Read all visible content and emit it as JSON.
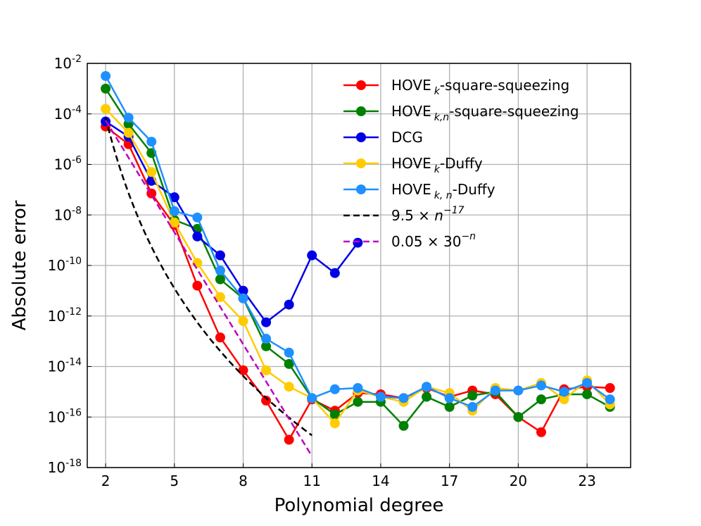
{
  "chart_data": {
    "type": "line",
    "title": "",
    "xlabel": "Polynomial degree",
    "ylabel": "Absolute error",
    "yscale": "log",
    "xlim": [
      1.2,
      24.9
    ],
    "ylim_exp": [
      -18,
      -2
    ],
    "xticks": [
      2,
      5,
      8,
      11,
      14,
      17,
      20,
      23
    ],
    "xtick_labels": [
      "2",
      "5",
      "8",
      "11",
      "14",
      "17",
      "20",
      "23"
    ],
    "yticks_exp": [
      -18,
      -16,
      -14,
      -12,
      -10,
      -8,
      -6,
      -4,
      -2
    ],
    "ytick_labels": [
      "-18",
      "-16",
      "-14",
      "-12",
      "-10",
      "-8",
      "-6",
      "-4",
      "-2"
    ],
    "ytick_base": "10",
    "grid": true,
    "legend_position": "top-right",
    "series": [
      {
        "name": "HOVE k -square-squeezing",
        "legend_main": "HOVE",
        "legend_sub": "k",
        "legend_rest": "-square-squeezing",
        "color": "#ff0000",
        "style": "solid",
        "marker": true,
        "x": [
          2,
          3,
          4,
          5,
          6,
          7,
          8,
          9,
          10,
          11,
          12,
          13,
          14,
          15,
          16,
          17,
          18,
          19,
          20,
          21,
          22,
          23,
          24
        ],
        "y_log10": [
          -4.5,
          -5.2,
          -7.15,
          -8.4,
          -10.8,
          -12.85,
          -14.15,
          -15.35,
          -16.9,
          -15.3,
          -15.75,
          -15.05,
          -15.1,
          -15.25,
          -14.85,
          -15.2,
          -14.95,
          -15.1,
          -16.0,
          -16.6,
          -14.9,
          -14.8,
          -14.85
        ]
      },
      {
        "name": "HOVE k,n-square-squeezing",
        "legend_main": "HOVE",
        "legend_sub": "k,n",
        "legend_rest": "-square-squeezing",
        "color": "#008000",
        "style": "solid",
        "marker": true,
        "x": [
          2,
          3,
          4,
          5,
          6,
          7,
          8,
          9,
          10,
          11,
          12,
          13,
          14,
          15,
          16,
          17,
          18,
          19,
          20,
          21,
          22,
          23,
          24
        ],
        "y_log10": [
          -3.0,
          -4.4,
          -5.55,
          -8.2,
          -8.55,
          -10.55,
          -11.3,
          -13.2,
          -13.9,
          -15.25,
          -15.9,
          -15.4,
          -15.4,
          -16.35,
          -15.2,
          -15.6,
          -15.15,
          -15.0,
          -16.0,
          -15.3,
          -15.1,
          -15.1,
          -15.6
        ]
      },
      {
        "name": "DCG",
        "legend_main": "DCG",
        "legend_sub": "",
        "legend_rest": "",
        "color": "#0000e6",
        "style": "solid",
        "marker": true,
        "x": [
          2,
          3,
          4,
          5,
          6,
          7,
          8,
          9,
          10,
          11,
          12,
          13
        ],
        "y_log10": [
          -4.3,
          -4.9,
          -6.65,
          -7.3,
          -8.85,
          -9.6,
          -11.0,
          -12.25,
          -11.55,
          -9.6,
          -10.3,
          -9.1
        ]
      },
      {
        "name": "HOVE k -Duffy",
        "legend_main": "HOVE",
        "legend_sub": "k",
        "legend_rest": "-Duffy",
        "color": "#ffcc00",
        "style": "solid",
        "marker": true,
        "x": [
          2,
          3,
          4,
          5,
          6,
          7,
          8,
          9,
          10,
          11,
          12,
          13,
          14,
          15,
          16,
          17,
          18,
          19,
          20,
          21,
          22,
          23,
          24
        ],
        "y_log10": [
          -3.8,
          -4.75,
          -6.3,
          -8.3,
          -9.9,
          -11.25,
          -12.2,
          -14.15,
          -14.8,
          -15.25,
          -16.25,
          -14.95,
          -15.2,
          -15.4,
          -14.8,
          -15.05,
          -15.75,
          -14.85,
          -14.95,
          -14.65,
          -15.3,
          -14.55,
          -15.5
        ]
      },
      {
        "name": "HOVE k, n -Duffy",
        "legend_main": "HOVE",
        "legend_sub": "k, n",
        "legend_rest": "-Duffy",
        "color": "#1e90ff",
        "style": "solid",
        "marker": true,
        "x": [
          2,
          3,
          4,
          5,
          6,
          7,
          8,
          9,
          10,
          11,
          12,
          13,
          14,
          15,
          16,
          17,
          18,
          19,
          20,
          21,
          22,
          23,
          24
        ],
        "y_log10": [
          -2.5,
          -4.15,
          -5.1,
          -7.85,
          -8.1,
          -10.2,
          -11.3,
          -12.9,
          -13.45,
          -15.25,
          -14.9,
          -14.85,
          -15.2,
          -15.25,
          -14.8,
          -15.25,
          -15.6,
          -14.95,
          -14.95,
          -14.75,
          -15.0,
          -14.65,
          -15.3
        ]
      },
      {
        "name": "9.5×n^-17",
        "legend_main": "9.5 × ",
        "legend_var": "n",
        "legend_sup": "−17",
        "color": "#000000",
        "style": "dashed",
        "marker": false,
        "formula": "9.5*n^-17",
        "x_range": [
          2,
          11
        ]
      },
      {
        "name": "0.05×30^-n",
        "legend_main": "0.05 × 30",
        "legend_var": "",
        "legend_sup": "−n",
        "color": "#c000c0",
        "style": "dashed",
        "marker": false,
        "formula": "0.05*30^-n",
        "x_range": [
          2,
          11
        ]
      }
    ]
  }
}
